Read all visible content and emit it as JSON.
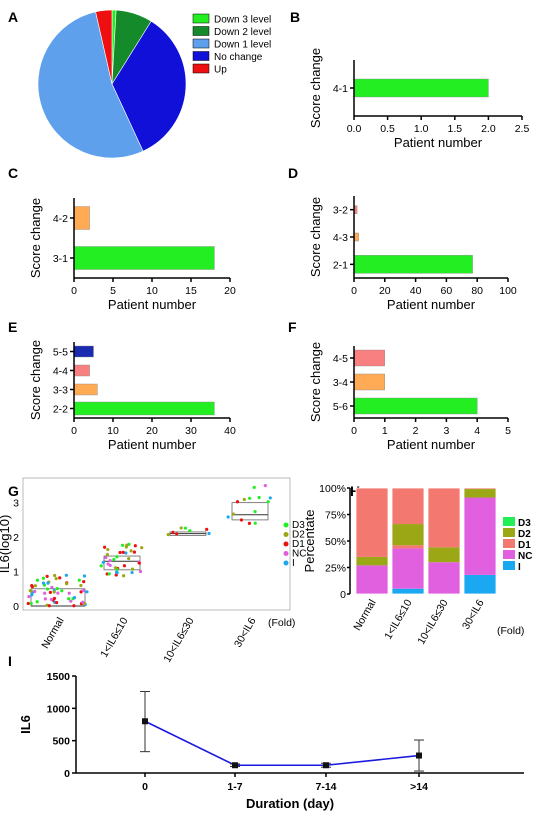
{
  "colors": {
    "green": "#22ee22",
    "darkgreen": "#158a2a",
    "lightblue": "#5fa0ec",
    "blue": "#1010d8",
    "red": "#ee1010",
    "orange": "#ffaa55",
    "salmon": "#f88080",
    "navy": "#1a2bb0",
    "olive": "#9ba714",
    "pink": "#e060e0",
    "cyan": "#1aa8f0",
    "coral": "#f27870",
    "line": "#1a1adf"
  },
  "chart_data": [
    {
      "panel": "A",
      "type": "pie",
      "labels": [
        "Down 3 level",
        "Down 2 level",
        "Down 1 level",
        "No change",
        "Up"
      ],
      "values": [
        2,
        18,
        120,
        77,
        8
      ]
    },
    {
      "panel": "B",
      "type": "bar",
      "orientation": "horizontal",
      "categories": [
        "4-1"
      ],
      "values": [
        2
      ],
      "xlabel": "Patient number",
      "ylabel": "Score change",
      "xlim": [
        0,
        2.5
      ],
      "xticks": [
        "0.0",
        "0.5",
        "1.0",
        "1.5",
        "2.0",
        "2.5"
      ]
    },
    {
      "panel": "C",
      "type": "bar",
      "orientation": "horizontal",
      "categories": [
        "4-2",
        "3-1"
      ],
      "values": [
        2,
        18
      ],
      "xlabel": "Patient number",
      "ylabel": "Score change",
      "xlim": [
        0,
        20
      ],
      "xticks": [
        "0",
        "5",
        "10",
        "15",
        "20"
      ]
    },
    {
      "panel": "D",
      "type": "bar",
      "orientation": "horizontal",
      "categories": [
        "3-2",
        "4-3",
        "2-1"
      ],
      "values": [
        2,
        3,
        77
      ],
      "xlabel": "Patient number",
      "ylabel": "Score change",
      "xlim": [
        0,
        100
      ],
      "xticks": [
        "0",
        "20",
        "40",
        "60",
        "80",
        "100"
      ]
    },
    {
      "panel": "E",
      "type": "bar",
      "orientation": "horizontal",
      "categories": [
        "5-5",
        "4-4",
        "3-3",
        "2-2"
      ],
      "values": [
        5,
        4,
        6,
        36
      ],
      "xlabel": "Patient number",
      "ylabel": "Score change",
      "xlim": [
        0,
        40
      ],
      "xticks": [
        "0",
        "10",
        "20",
        "30",
        "40"
      ]
    },
    {
      "panel": "F",
      "type": "bar",
      "orientation": "horizontal",
      "categories": [
        "4-5",
        "3-4",
        "5-6"
      ],
      "values": [
        1,
        1,
        4
      ],
      "xlabel": "Patient number",
      "ylabel": "Score change",
      "xlim": [
        0,
        5
      ],
      "xticks": [
        "0",
        "1",
        "2",
        "3",
        "4",
        "5"
      ]
    },
    {
      "panel": "G",
      "type": "scatter",
      "ylabel": "IL6(log10)",
      "categories": [
        "Normal",
        "1<IL6≤10",
        "10<IL6≤30",
        "30<IL6"
      ],
      "ylim": [
        0,
        3.6
      ],
      "yticks": [
        "0",
        "1",
        "2",
        "3"
      ],
      "unit": "(Fold)",
      "legend": [
        "D3",
        "D2",
        "D1",
        "NC",
        "I"
      ],
      "box": [
        [
          0,
          0,
          0.5
        ],
        [
          1.05,
          1.3,
          1.45
        ],
        [
          2.05,
          2.1,
          2.15
        ],
        [
          2.5,
          2.65,
          3.0
        ]
      ]
    },
    {
      "panel": "H",
      "type": "bar",
      "stacked": true,
      "ylabel": "Percentate",
      "categories": [
        "Normal",
        "1<IL6≤10",
        "10<IL6≤30",
        "30<IL6"
      ],
      "ylim": [
        0,
        100
      ],
      "yticks": [
        "0",
        "25%",
        "50%",
        "75%",
        "100%"
      ],
      "unit": "(Fold)",
      "series": [
        {
          "name": "I",
          "values": [
            0,
            5,
            0,
            18
          ]
        },
        {
          "name": "NC",
          "values": [
            27,
            38,
            30,
            73
          ]
        },
        {
          "name": "D1",
          "values": [
            0,
            3,
            0,
            0
          ]
        },
        {
          "name": "D2",
          "values": [
            8,
            20,
            14,
            8
          ]
        },
        {
          "name": "D3",
          "values": [
            65,
            34,
            56,
            1
          ]
        }
      ]
    },
    {
      "panel": "I",
      "type": "line",
      "ylabel": "IL6",
      "xlabel": "Duration (day)",
      "categories": [
        "0",
        "1-7",
        "7-14",
        ">14"
      ],
      "values": [
        800,
        120,
        120,
        270
      ],
      "err_low": [
        330,
        100,
        90,
        30
      ],
      "err_high": [
        1260,
        140,
        150,
        510
      ],
      "ylim": [
        0,
        1500
      ],
      "yticks": [
        "0",
        "500",
        "1000",
        "1500"
      ]
    }
  ]
}
